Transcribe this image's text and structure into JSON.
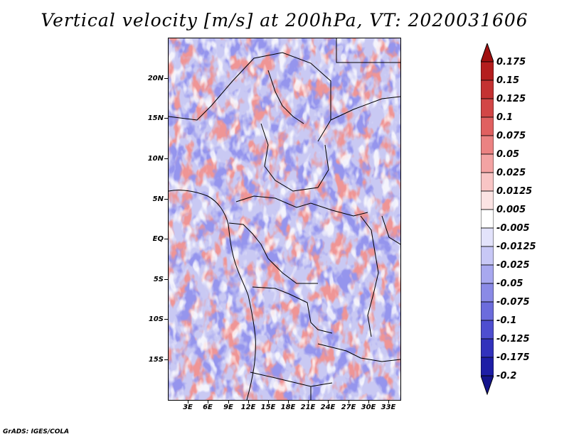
{
  "title": "Vertical velocity [m/s] at 200hPa, VT: 2020031606",
  "credit": "GrADS: IGES/COLA",
  "map": {
    "lat_labels": [
      "20N",
      "15N",
      "10N",
      "5N",
      "EQ",
      "5S",
      "10S",
      "15S"
    ],
    "lon_labels": [
      "3E",
      "6E",
      "9E",
      "12E",
      "15E",
      "18E",
      "21E",
      "24E",
      "27E",
      "30E",
      "33E"
    ]
  },
  "colorbar": {
    "labels": [
      "0.175",
      "0.15",
      "0.125",
      "0.1",
      "0.075",
      "0.05",
      "0.025",
      "0.0125",
      "0.005",
      "-0.005",
      "-0.0125",
      "-0.025",
      "-0.05",
      "-0.075",
      "-0.1",
      "-0.125",
      "-0.175",
      "-0.2"
    ],
    "colors": [
      "#a01010",
      "#b41e1e",
      "#c43232",
      "#d24646",
      "#e06060",
      "#eb8282",
      "#f3a3a3",
      "#f8c5c5",
      "#fbe3e3",
      "#ffffff",
      "#e3e3fb",
      "#c8c8f6",
      "#a8a8ef",
      "#8a8ae6",
      "#6c6cdc",
      "#4e4ed0",
      "#3232bc",
      "#1e1ea6",
      "#14148c"
    ]
  }
}
